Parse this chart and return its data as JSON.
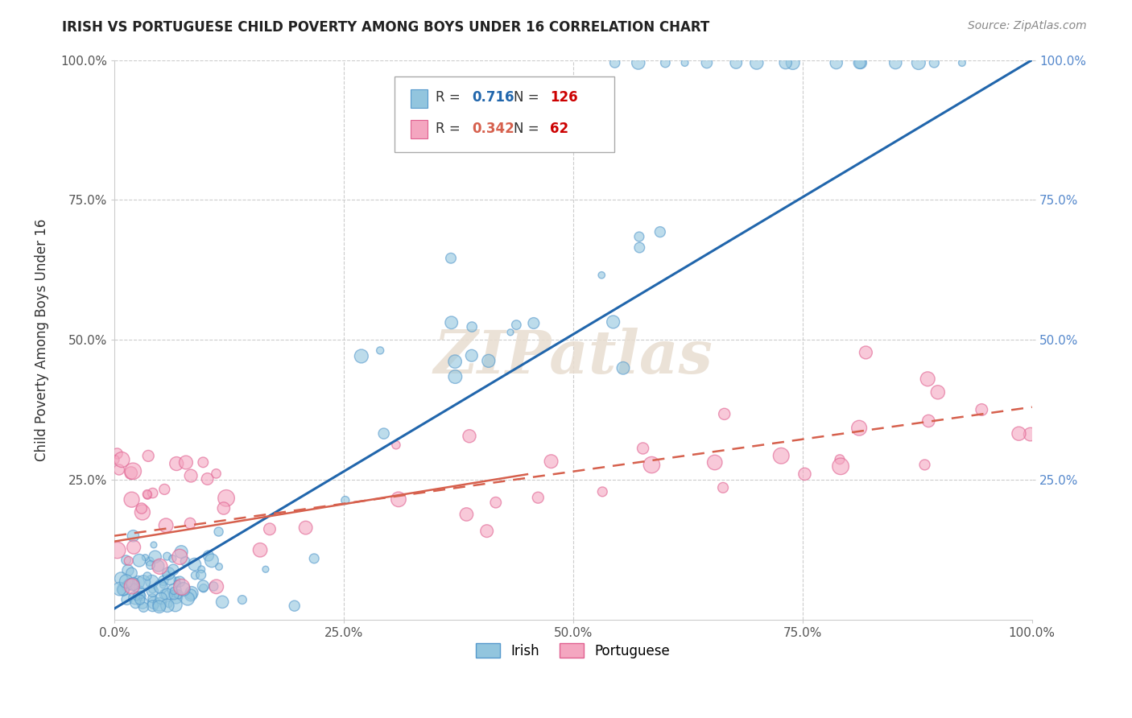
{
  "title": "IRISH VS PORTUGUESE CHILD POVERTY AMONG BOYS UNDER 16 CORRELATION CHART",
  "source": "Source: ZipAtlas.com",
  "ylabel": "Child Poverty Among Boys Under 16",
  "xlim": [
    0.0,
    1.0
  ],
  "ylim": [
    0.0,
    1.0
  ],
  "xtick_labels": [
    "0.0%",
    "25.0%",
    "50.0%",
    "75.0%",
    "100.0%"
  ],
  "xtick_values": [
    0.0,
    0.25,
    0.5,
    0.75,
    1.0
  ],
  "ytick_labels": [
    "25.0%",
    "50.0%",
    "75.0%",
    "100.0%"
  ],
  "ytick_values": [
    0.25,
    0.5,
    0.75,
    1.0
  ],
  "right_ytick_labels": [
    "25.0%",
    "50.0%",
    "75.0%",
    "100.0%"
  ],
  "irish_color": "#92c5de",
  "irish_edge_color": "#5599cc",
  "portuguese_color": "#f4a6c0",
  "portuguese_edge_color": "#e06090",
  "irish_line_color": "#2166ac",
  "portuguese_line_color": "#d6604d",
  "portuguese_dash_color": "#d6604d",
  "irish_r": "0.716",
  "irish_n": "126",
  "portuguese_r": "0.342",
  "portuguese_n": "62",
  "watermark": "ZIPatlas",
  "background_color": "#ffffff",
  "grid_color": "#cccccc",
  "legend_r_color": "#333333",
  "legend_n_color": "#cc0000",
  "irish_label": "Irish",
  "portuguese_label": "Portuguese"
}
